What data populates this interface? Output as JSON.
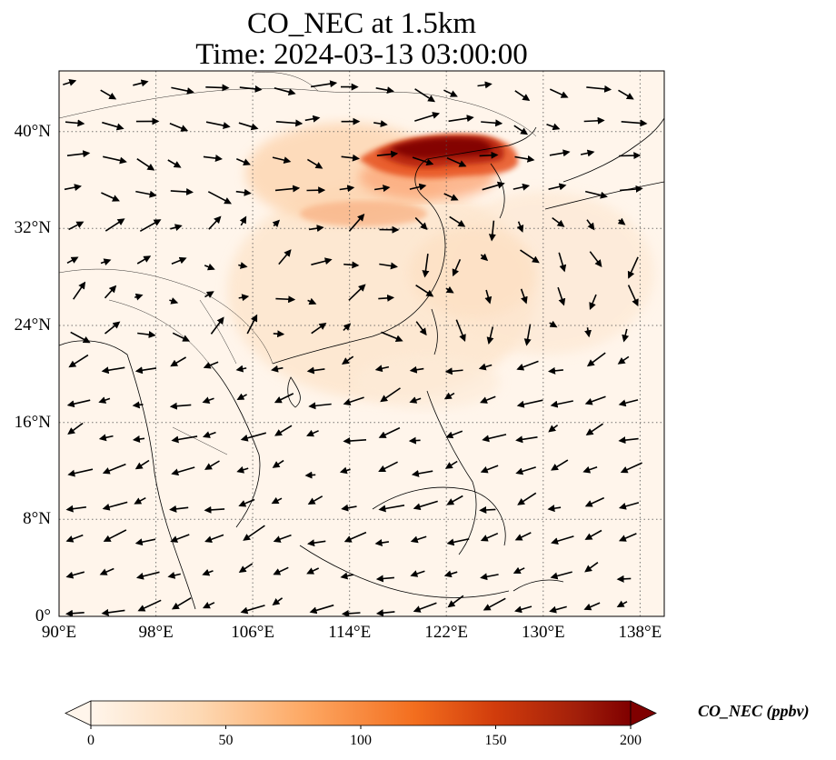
{
  "title": {
    "line1": "CO_NEC at 1.5km",
    "line2": "Time: 2024-03-13 03:00:00"
  },
  "map": {
    "variable": "CO_NEC",
    "height": "1.5km",
    "time": "2024-03-13 03:00:00",
    "lon_range": [
      90,
      140
    ],
    "lat_range": [
      0,
      45
    ],
    "gridlines": true,
    "lon_ticks": [
      "90°E",
      "98°E",
      "106°E",
      "114°E",
      "122°E",
      "130°E",
      "138°E"
    ],
    "lat_ticks": [
      "0°",
      "8°N",
      "16°N",
      "24°N",
      "32°N",
      "40°N"
    ],
    "wind_vectors": true
  },
  "colorbar": {
    "label": "CO_NEC (ppbv)",
    "ticks": [
      "0",
      "50",
      "100",
      "150",
      "200"
    ],
    "range": [
      0,
      200
    ],
    "extend": "both",
    "colormap": [
      "#fff5eb",
      "#fdd9b4",
      "#fda762",
      "#f36e1e",
      "#d13c0c",
      "#a21f0a",
      "#7f0000"
    ]
  }
}
